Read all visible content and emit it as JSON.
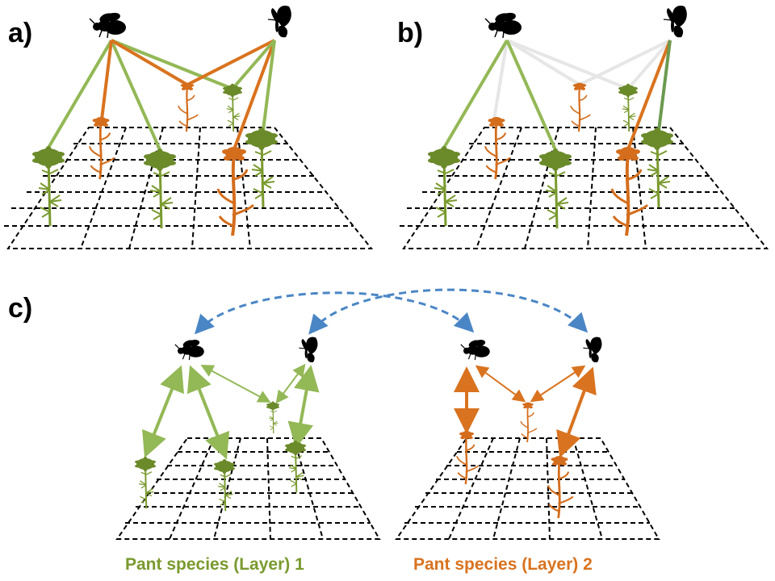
{
  "panels": {
    "a": {
      "label": "a)"
    },
    "b": {
      "label": "b)"
    },
    "c": {
      "label": "c)"
    }
  },
  "layers": [
    {
      "label": "Pant species (Layer) 1",
      "color": "#7a9a2e"
    },
    {
      "label": "Pant species (Layer) 2",
      "color": "#d9731f"
    }
  ],
  "colors": {
    "green_link": "#93b856",
    "dark_green_link": "#6b9a4f",
    "orange_link": "#d9731f",
    "grey_link": "#e6e6e6",
    "green_plant": "#6b8a2a",
    "orange_plant": "#d46d1c",
    "interlayer_link": "#4a86c5",
    "grid": "#000000"
  },
  "icons": [
    "bee-icon",
    "butterfly-icon",
    "green-daisy-icon",
    "orange-flower-icon"
  ]
}
